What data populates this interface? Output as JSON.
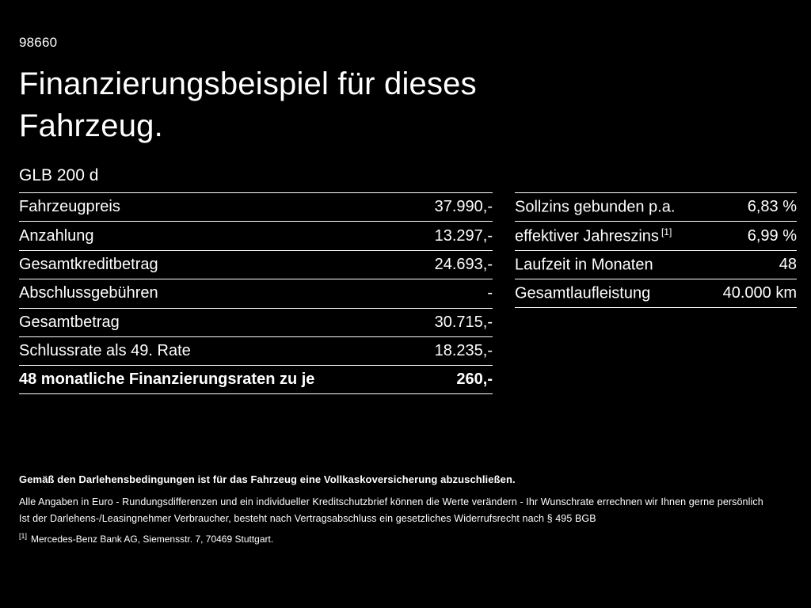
{
  "page": {
    "code": "98660",
    "title_line1": "Finanzierungsbeispiel für dieses",
    "title_line2": "Fahrzeug.",
    "model": "GLB 200 d"
  },
  "left_table": {
    "rows": [
      {
        "label": "Fahrzeugpreis",
        "value": "37.990,-"
      },
      {
        "label": "Anzahlung",
        "value": "13.297,-"
      },
      {
        "label": "Gesamtkreditbetrag",
        "value": "24.693,-"
      },
      {
        "label": "Abschlussgebühren",
        "value": "-"
      },
      {
        "label": "Gesamtbetrag",
        "value": "30.715,-"
      },
      {
        "label": "Schlussrate als 49. Rate",
        "value": "18.235,-"
      },
      {
        "label": "48 monatliche Finanzierungsraten zu je",
        "value": "260,-"
      }
    ]
  },
  "right_table": {
    "rows": [
      {
        "label": "Sollzins gebunden p.a.",
        "sup": "",
        "value": "6,83 %"
      },
      {
        "label": "effektiver Jahreszins",
        "sup": "[1]",
        "value": "6,99 %"
      },
      {
        "label": "Laufzeit in Monaten",
        "sup": "",
        "value": "48"
      },
      {
        "label": "Gesamtlaufleistung",
        "sup": "",
        "value": "40.000 km"
      }
    ]
  },
  "footnotes": {
    "insurance": "Gemäß den Darlehensbedingungen ist für das Fahrzeug eine Vollkaskoversicherung abzuschließen.",
    "line1": "Alle Angaben in Euro - Rundungsdifferenzen und ein individueller Kreditschutzbrief können die Werte verändern - Ihr Wunschrate errechnen wir Ihnen gerne persönlich",
    "line2": "Ist der Darlehens-/Leasingnehmer Verbraucher, besteht nach Vertragsabschluss ein gesetzliches Widerrufsrecht nach § 495 BGB",
    "bank_sup": "[1]",
    "bank_text": "Mercedes-Benz Bank AG, Siemensstr. 7, 70469 Stuttgart."
  }
}
